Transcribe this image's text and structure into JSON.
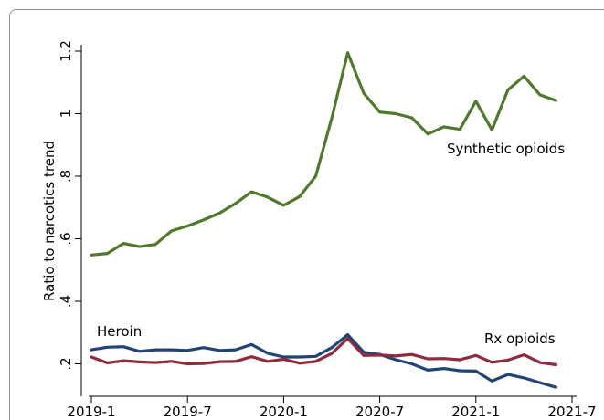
{
  "chart_data": {
    "type": "line",
    "ylabel": "Ratio to narcotics trend",
    "xlabel": "",
    "x_tick_labels": [
      "2019-1",
      "2019-7",
      "2020-1",
      "2020-7",
      "2021-1",
      "2021-7"
    ],
    "y_tick_labels": [
      ".2",
      ".4",
      ".6",
      ".8",
      "1",
      "1.2"
    ],
    "y_ticks": [
      0.2,
      0.4,
      0.6,
      0.8,
      1.0,
      1.2
    ],
    "ylim": [
      0.12,
      1.24
    ],
    "x_index_range": [
      0,
      30
    ],
    "x_tick_index": [
      0,
      6,
      12,
      18,
      24,
      30
    ],
    "grid": false,
    "legend": "none",
    "series": [
      {
        "name": "Synthetic opioids",
        "color": "#4e7a2a",
        "values": [
          0.548,
          0.553,
          0.585,
          0.575,
          0.582,
          0.625,
          0.641,
          0.66,
          0.682,
          0.713,
          0.75,
          0.733,
          0.707,
          0.735,
          0.8,
          0.985,
          1.195,
          1.065,
          1.005,
          1.0,
          0.987,
          0.935,
          0.958,
          0.95,
          1.04,
          0.948,
          1.076,
          1.12,
          1.06,
          1.042
        ]
      },
      {
        "name": "Heroin",
        "color": "#1f4576",
        "values": [
          0.245,
          0.253,
          0.255,
          0.24,
          0.245,
          0.245,
          0.243,
          0.252,
          0.243,
          0.245,
          0.262,
          0.234,
          0.222,
          0.222,
          0.224,
          0.252,
          0.293,
          0.237,
          0.23,
          0.213,
          0.2,
          0.18,
          0.185,
          0.178,
          0.177,
          0.145,
          0.166,
          0.155,
          0.14,
          0.125
        ]
      },
      {
        "name": "Rx opioids",
        "color": "#8f2b3c",
        "values": [
          0.222,
          0.203,
          0.21,
          0.206,
          0.204,
          0.208,
          0.2,
          0.201,
          0.207,
          0.208,
          0.223,
          0.208,
          0.215,
          0.202,
          0.208,
          0.233,
          0.281,
          0.227,
          0.228,
          0.225,
          0.23,
          0.216,
          0.217,
          0.213,
          0.227,
          0.205,
          0.212,
          0.229,
          0.204,
          0.197
        ]
      }
    ]
  }
}
